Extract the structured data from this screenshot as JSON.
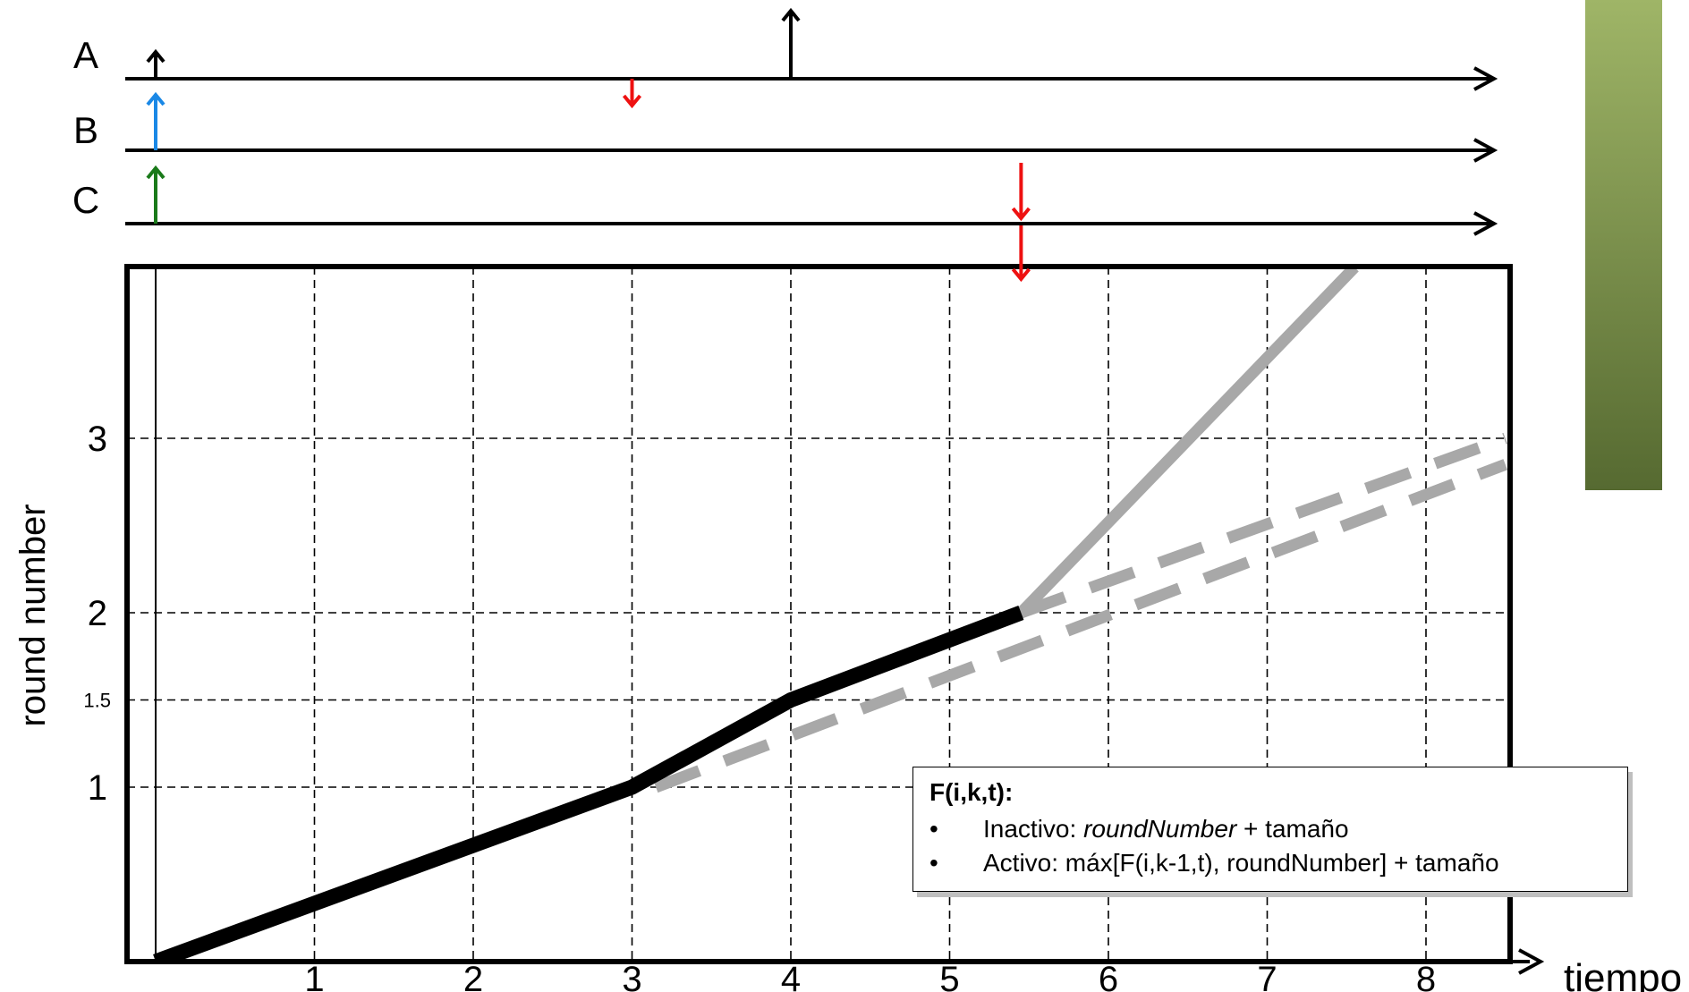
{
  "timelines": [
    {
      "label": "A",
      "arrows": [
        {
          "t": 0.0,
          "dir": "up",
          "size": "small",
          "color": "#000000"
        },
        {
          "t": 3.0,
          "dir": "down",
          "size": "small",
          "color": "#ee1111"
        },
        {
          "t": 4.0,
          "dir": "up",
          "size": "large",
          "color": "#000000"
        }
      ]
    },
    {
      "label": "B",
      "arrows": [
        {
          "t": 0.0,
          "dir": "up",
          "size": "medium",
          "color": "#1a88e6"
        }
      ]
    },
    {
      "label": "C",
      "arrows": [
        {
          "t": 0.0,
          "dir": "up",
          "size": "medium",
          "color": "#1a7a1a"
        },
        {
          "t": 5.45,
          "dir": "down",
          "size": "medium",
          "color": "#ee1111"
        }
      ]
    }
  ],
  "plot_marker": {
    "t": 5.45,
    "dir": "down",
    "color": "#ee1111"
  },
  "chart_data": {
    "type": "line",
    "xlabel": "tiempo",
    "ylabel": "round number",
    "xlim": [
      -0.2,
      8.5
    ],
    "ylim": [
      0,
      4.0
    ],
    "x_ticks": [
      1,
      2,
      3,
      4,
      5,
      6,
      7,
      8
    ],
    "y_ticks": [
      1,
      1.5,
      2,
      3
    ],
    "grid": true,
    "series": [
      {
        "style": "thick-solid",
        "color": "#000000",
        "points": [
          [
            0,
            0
          ],
          [
            3,
            1
          ],
          [
            4,
            1.5
          ],
          [
            5.45,
            2.0
          ]
        ]
      },
      {
        "style": "solid",
        "color": "#a8a8a8",
        "points": [
          [
            5.45,
            2.0
          ],
          [
            7.55,
            3.98
          ]
        ]
      },
      {
        "style": "dashed",
        "color": "#a8a8a8",
        "points": [
          [
            5.45,
            2.0
          ],
          [
            8.5,
            3.0
          ]
        ]
      },
      {
        "style": "dashed",
        "color": "#a8a8a8",
        "points": [
          [
            3.15,
            1.0
          ],
          [
            8.5,
            2.85
          ]
        ]
      }
    ]
  },
  "formula_box": {
    "title": "F(i,k,t):",
    "items": [
      {
        "bullet": "•",
        "label": "Inactivo: ",
        "term": "roundNumber",
        "suffix": " + tamaño"
      },
      {
        "bullet": "•",
        "label": "Activo: máx[F(i,k-1,t), roundNumber] + tamaño",
        "term": "",
        "suffix": ""
      }
    ]
  }
}
